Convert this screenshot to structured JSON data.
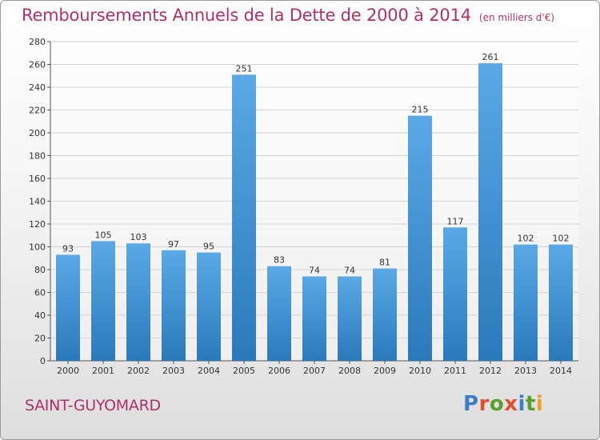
{
  "page": {
    "title": "Remboursements Annuels de la Dette de 2000 à 2014",
    "subtitle": "(en milliers d'€)",
    "location": "SAINT-GUYOMARD",
    "logo_text": "Proxiti",
    "logo_letters": [
      {
        "ch": "P",
        "color": "#3a7fc4"
      },
      {
        "ch": "r",
        "color": "#e0522a"
      },
      {
        "ch": "o",
        "color": "#5aa02c"
      },
      {
        "ch": "x",
        "color": "#e0522a"
      },
      {
        "ch": "i",
        "color": "#3a7fc4"
      },
      {
        "ch": "t",
        "color": "#5aa02c"
      },
      {
        "ch": "i",
        "color": "#f0a020"
      }
    ]
  },
  "colors": {
    "title": "#b0306a",
    "bar_light": "#5aa9e6",
    "bar_dark": "#2a7abb",
    "grid": "#d4d4d4",
    "axis": "#555555"
  },
  "chart_data": {
    "type": "bar",
    "title": "Remboursements Annuels de la Dette de 2000 à 2014",
    "subtitle": "(en milliers d'€)",
    "categories": [
      "2000",
      "2001",
      "2002",
      "2003",
      "2004",
      "2005",
      "2006",
      "2007",
      "2008",
      "2009",
      "2010",
      "2011",
      "2012",
      "2013",
      "2014"
    ],
    "values": [
      93,
      105,
      103,
      97,
      95,
      251,
      83,
      74,
      74,
      81,
      215,
      117,
      261,
      102,
      102
    ],
    "ylim": [
      0,
      280
    ],
    "yticks": [
      0,
      20,
      40,
      60,
      80,
      100,
      120,
      140,
      160,
      180,
      200,
      220,
      240,
      260,
      280
    ],
    "grid": true,
    "data_labels": true
  }
}
